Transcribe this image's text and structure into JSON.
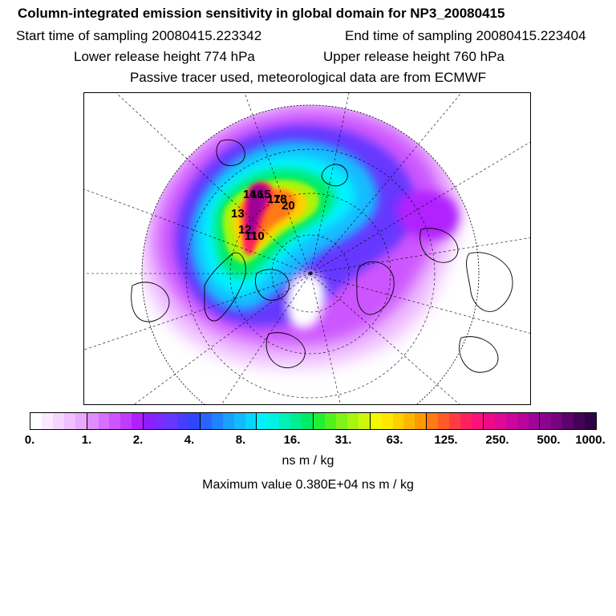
{
  "header": {
    "title": "Column-integrated emission sensitivity in global domain for NP3_20080415",
    "start_time": "Start time of sampling 20080415.223342",
    "end_time": "End time of sampling 20080415.223404",
    "lower_release": "Lower release height  774 hPa",
    "upper_release": "Upper release height  760 hPa",
    "tracer_note": "Passive tracer used, meteorological data are from ECMWF"
  },
  "map": {
    "projection": "north-polar-stereographic",
    "markers": [
      "14",
      "16",
      "15",
      "17",
      "18",
      "20",
      "13",
      "12",
      "11",
      "10"
    ],
    "field_colors": [
      "#ffffff",
      "#cc66ff",
      "#6600ff",
      "#0099ff",
      "#00ffff",
      "#00ff66",
      "#ccff00",
      "#ffcc00",
      "#ff3366",
      "#cc0099",
      "#660066"
    ]
  },
  "colorbar": {
    "colors": [
      "#ffffff",
      "#fbe9ff",
      "#f5d4ff",
      "#efbfff",
      "#e8a9ff",
      "#df8cff",
      "#d670ff",
      "#cc55ff",
      "#bf3cff",
      "#b020ff",
      "#8d1eff",
      "#7a2bff",
      "#6637ff",
      "#4a3cff",
      "#2f46ff",
      "#2a64ff",
      "#1f82ff",
      "#1aa0ff",
      "#12bbff",
      "#08d5ff",
      "#00f2ff",
      "#00f2e0",
      "#00f0b8",
      "#00ee90",
      "#00ec66",
      "#22f032",
      "#50f21e",
      "#80f416",
      "#a8f510",
      "#cdf80c",
      "#f2f800",
      "#ffe600",
      "#ffd000",
      "#ffb800",
      "#ff9a00",
      "#ff7a14",
      "#ff5a28",
      "#ff3c44",
      "#ff2060",
      "#ff107a",
      "#f00a8a",
      "#e00894",
      "#cc069c",
      "#b8049e",
      "#a00399",
      "#8a0490",
      "#740480",
      "#5c036c",
      "#44025a",
      "#300248"
    ],
    "ticks": [
      "0.",
      "1.",
      "2.",
      "4.",
      "8.",
      "16.",
      "31.",
      "63.",
      "125.",
      "250.",
      "500.",
      "1000."
    ],
    "unit": "ns m / kg",
    "max_value": "Maximum value  0.380E+04 ns m / kg"
  }
}
